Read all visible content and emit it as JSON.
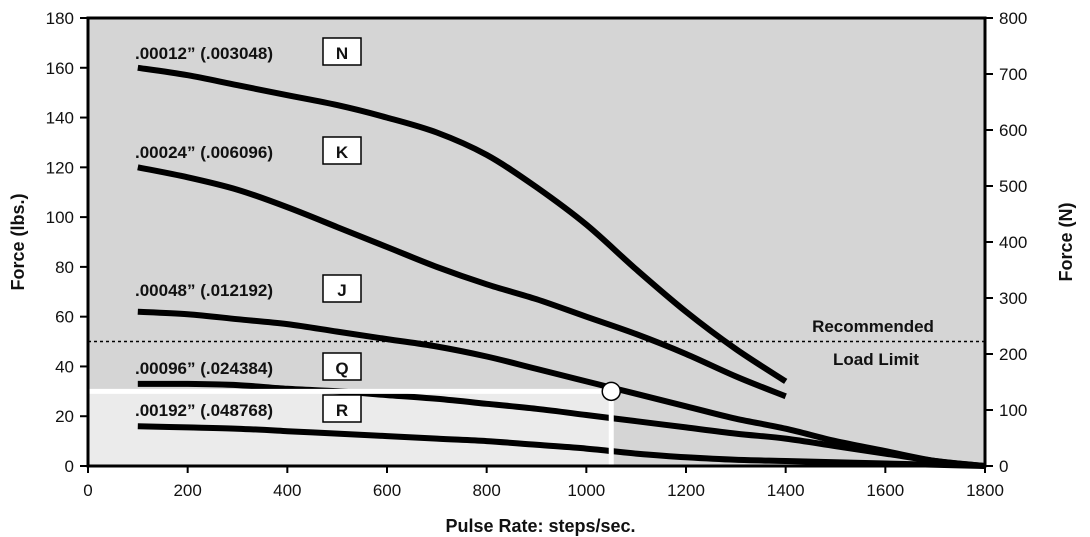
{
  "chart_data": {
    "type": "line",
    "xlabel": "Pulse Rate:  steps/sec.",
    "ylabel": "Force (lbs.)",
    "ylabel_right": "Force (N)",
    "xlim": [
      0,
      1800
    ],
    "ylim": [
      0,
      180
    ],
    "ylim_right": [
      0,
      800
    ],
    "x_ticks": [
      0,
      200,
      400,
      600,
      800,
      1000,
      1200,
      1400,
      1600,
      1800
    ],
    "y_ticks": [
      0,
      20,
      40,
      60,
      80,
      100,
      120,
      140,
      160,
      180
    ],
    "y_ticks_right": [
      0,
      100,
      200,
      300,
      400,
      500,
      600,
      700,
      800
    ],
    "grid": false,
    "series": [
      {
        "name": "N",
        "label": ".00012” (.003048)",
        "points": [
          [
            100,
            160
          ],
          [
            200,
            157
          ],
          [
            300,
            153
          ],
          [
            400,
            149
          ],
          [
            500,
            145
          ],
          [
            600,
            140
          ],
          [
            700,
            134
          ],
          [
            800,
            125
          ],
          [
            900,
            112
          ],
          [
            1000,
            97
          ],
          [
            1100,
            79
          ],
          [
            1200,
            62
          ],
          [
            1300,
            47
          ],
          [
            1400,
            34
          ]
        ]
      },
      {
        "name": "K",
        "label": ".00024” (.006096)",
        "points": [
          [
            100,
            120
          ],
          [
            200,
            116
          ],
          [
            300,
            111
          ],
          [
            400,
            104
          ],
          [
            500,
            96
          ],
          [
            600,
            88
          ],
          [
            700,
            80
          ],
          [
            800,
            73
          ],
          [
            900,
            67
          ],
          [
            1000,
            60
          ],
          [
            1100,
            53
          ],
          [
            1200,
            45
          ],
          [
            1300,
            36
          ],
          [
            1400,
            28
          ]
        ]
      },
      {
        "name": "J",
        "label": ".00048” (.012192)",
        "points": [
          [
            100,
            62
          ],
          [
            200,
            61
          ],
          [
            300,
            59
          ],
          [
            400,
            57
          ],
          [
            500,
            54
          ],
          [
            600,
            51
          ],
          [
            700,
            48
          ],
          [
            800,
            44
          ],
          [
            900,
            39
          ],
          [
            1000,
            34
          ],
          [
            1100,
            29
          ],
          [
            1200,
            24
          ],
          [
            1300,
            19
          ],
          [
            1400,
            15
          ],
          [
            1500,
            10
          ],
          [
            1600,
            6
          ],
          [
            1700,
            2
          ],
          [
            1800,
            0
          ]
        ]
      },
      {
        "name": "Q",
        "label": ".00096” (.024384)",
        "points": [
          [
            100,
            33
          ],
          [
            200,
            33
          ],
          [
            300,
            32.5
          ],
          [
            400,
            31
          ],
          [
            500,
            30
          ],
          [
            600,
            28.5
          ],
          [
            700,
            27
          ],
          [
            800,
            25
          ],
          [
            900,
            23
          ],
          [
            1000,
            20.5
          ],
          [
            1100,
            18
          ],
          [
            1200,
            15.5
          ],
          [
            1300,
            13
          ],
          [
            1400,
            11
          ],
          [
            1500,
            8
          ],
          [
            1600,
            5
          ],
          [
            1700,
            2
          ],
          [
            1800,
            0
          ]
        ]
      },
      {
        "name": "R",
        "label": ".00192” (.048768)",
        "points": [
          [
            100,
            16
          ],
          [
            200,
            15.5
          ],
          [
            300,
            15
          ],
          [
            400,
            14
          ],
          [
            500,
            13
          ],
          [
            600,
            12
          ],
          [
            700,
            11
          ],
          [
            800,
            10
          ],
          [
            900,
            8.5
          ],
          [
            1000,
            7
          ],
          [
            1100,
            5
          ],
          [
            1200,
            3.5
          ],
          [
            1300,
            2.5
          ],
          [
            1400,
            2
          ],
          [
            1500,
            1.5
          ],
          [
            1600,
            1
          ],
          [
            1700,
            0.5
          ],
          [
            1800,
            0
          ]
        ]
      }
    ],
    "recommended_limit": {
      "y": 50,
      "label_line1": "Recommended",
      "label_line2": "Load Limit"
    },
    "example_point": {
      "x": 1050,
      "y": 30
    },
    "colors": {
      "plot_bg": "#d5d5d5",
      "highlight_bg": "#ebebeb",
      "curve": "#000000",
      "example_marker": "#ffffff"
    }
  }
}
